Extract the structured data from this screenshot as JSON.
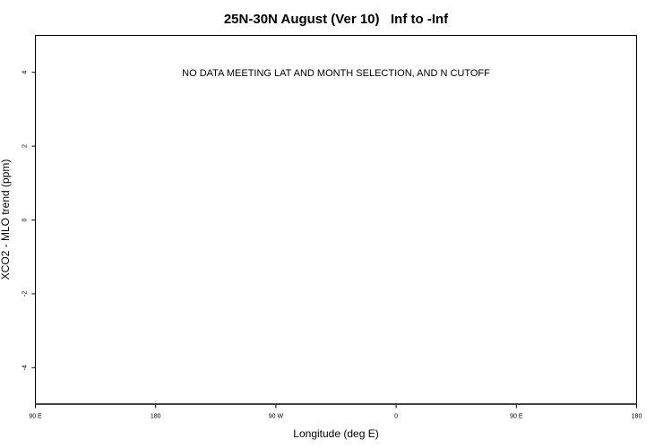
{
  "chart_data": {
    "type": "scatter",
    "title": "25N-30N August (Ver 10)   Inf to -Inf",
    "xlabel": "Longitude (deg E)",
    "ylabel": "XCO2 - MLO trend (ppm)",
    "annotation": "NO DATA MEETING LAT AND MONTH SELECTION, AND N CUTOFF",
    "xlim": [
      90,
      450
    ],
    "ylim": [
      -5,
      5
    ],
    "x_ticks": [
      90,
      180,
      270,
      360,
      450,
      540
    ],
    "x_tick_labels": [
      "90 E",
      "180",
      "90 W",
      "0",
      "90 E",
      "180"
    ],
    "y_ticks": [
      -4,
      -2,
      0,
      2,
      4
    ],
    "y_tick_labels": [
      "-4",
      "-2",
      "0",
      "2",
      "4"
    ],
    "grid": false,
    "series": []
  }
}
